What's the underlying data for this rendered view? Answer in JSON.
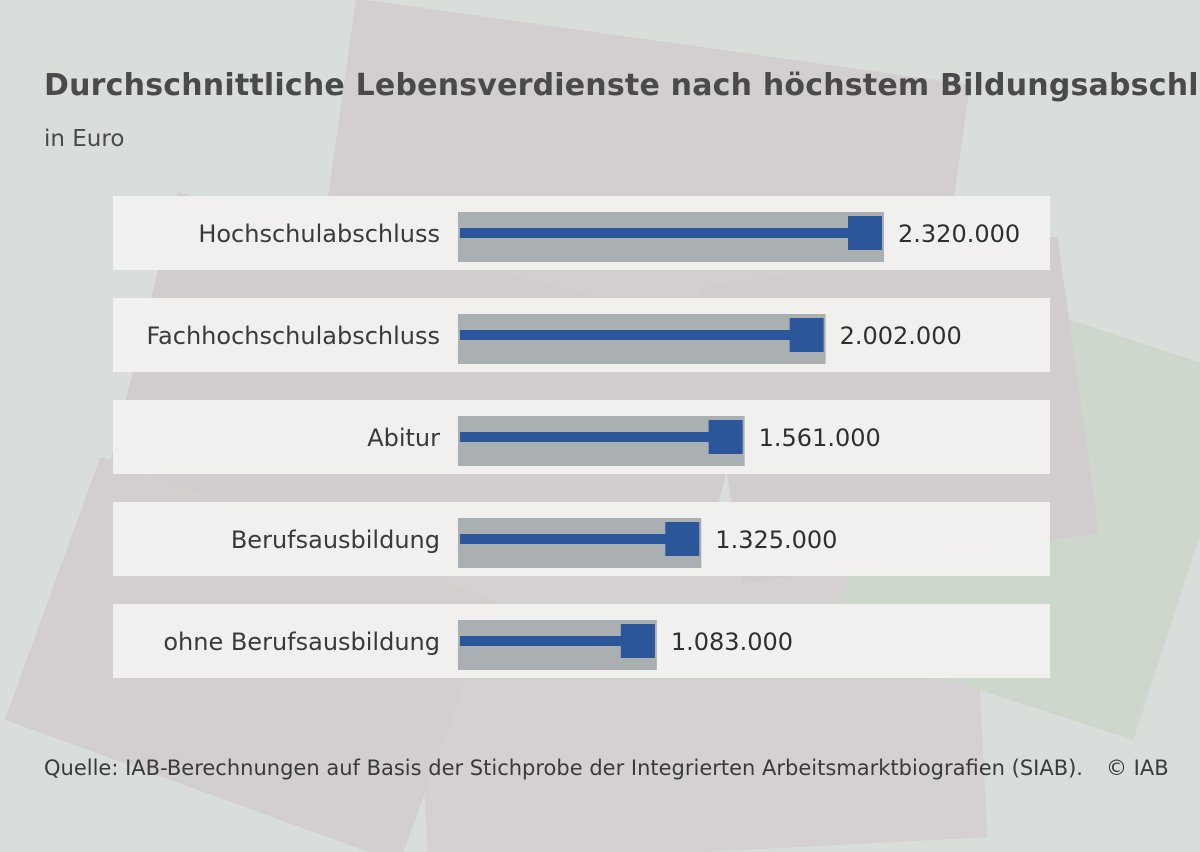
{
  "colors": {
    "bar": "#2b569a",
    "bar_shadow": "#9ea3a7",
    "row_band": "#f3f3f1",
    "background": "#d9dedb"
  },
  "background_image": "euro-banknotes",
  "chart_data": {
    "type": "bar",
    "orientation": "horizontal",
    "title": "Durchschnittliche Lebensverdienste nach höchstem Bildungsabschluss",
    "subtitle": "in Euro",
    "categories": [
      "Hochschulabschluss",
      "Fachhochschulabschluss",
      "Abitur",
      "Berufsausbildung",
      "ohne Berufsausbildung"
    ],
    "values": [
      2320000,
      2002000,
      1561000,
      1325000,
      1083000
    ],
    "value_labels": [
      "2.320.000",
      "2.002.000",
      "1.561.000",
      "1.325.000",
      "1.083.000"
    ],
    "xlim": [
      0,
      2320000
    ],
    "grid": false,
    "legend": "none"
  },
  "footer": {
    "source": "Quelle: IAB-Berechnungen auf Basis der Stichprobe der Integrierten Arbeitsmarktbiografien (SIAB).",
    "copyright": "© IAB"
  }
}
